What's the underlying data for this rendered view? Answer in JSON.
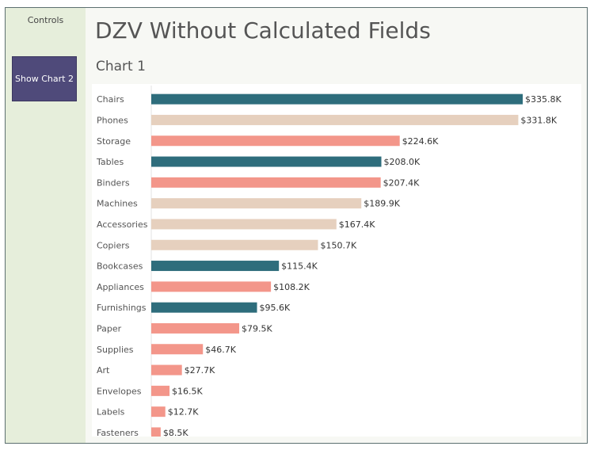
{
  "sidebar": {
    "controls_label": "Controls",
    "show_chart_button": "Show Chart 2"
  },
  "header": {
    "title": "DZV Without Calculated Fields",
    "subtitle": "Chart 1"
  },
  "colors": {
    "teal": "#2e6d7c",
    "beige": "#e6d0be",
    "salmon": "#f3968a"
  },
  "chart_data": {
    "type": "bar",
    "orientation": "horizontal",
    "title": "Chart 1",
    "categories": [
      "Chairs",
      "Phones",
      "Storage",
      "Tables",
      "Binders",
      "Machines",
      "Accessories",
      "Copiers",
      "Bookcases",
      "Appliances",
      "Furnishings",
      "Paper",
      "Supplies",
      "Art",
      "Envelopes",
      "Labels",
      "Fasteners"
    ],
    "values": [
      335.8,
      331.8,
      224.6,
      208.0,
      207.4,
      189.9,
      167.4,
      150.7,
      115.4,
      108.2,
      95.6,
      79.5,
      46.7,
      27.7,
      16.5,
      12.7,
      8.5
    ],
    "labels": [
      "$335.8K",
      "$331.8K",
      "$224.6K",
      "$208.0K",
      "$207.4K",
      "$189.9K",
      "$167.4K",
      "$150.7K",
      "$115.4K",
      "$108.2K",
      "$95.6K",
      "$79.5K",
      "$46.7K",
      "$27.7K",
      "$16.5K",
      "$12.7K",
      "$8.5K"
    ],
    "bar_colors": [
      "teal",
      "beige",
      "salmon",
      "teal",
      "salmon",
      "beige",
      "beige",
      "beige",
      "teal",
      "salmon",
      "teal",
      "salmon",
      "salmon",
      "salmon",
      "salmon",
      "salmon",
      "salmon"
    ],
    "xlim": [
      0,
      335.8
    ],
    "grid": false,
    "legend": "none"
  }
}
